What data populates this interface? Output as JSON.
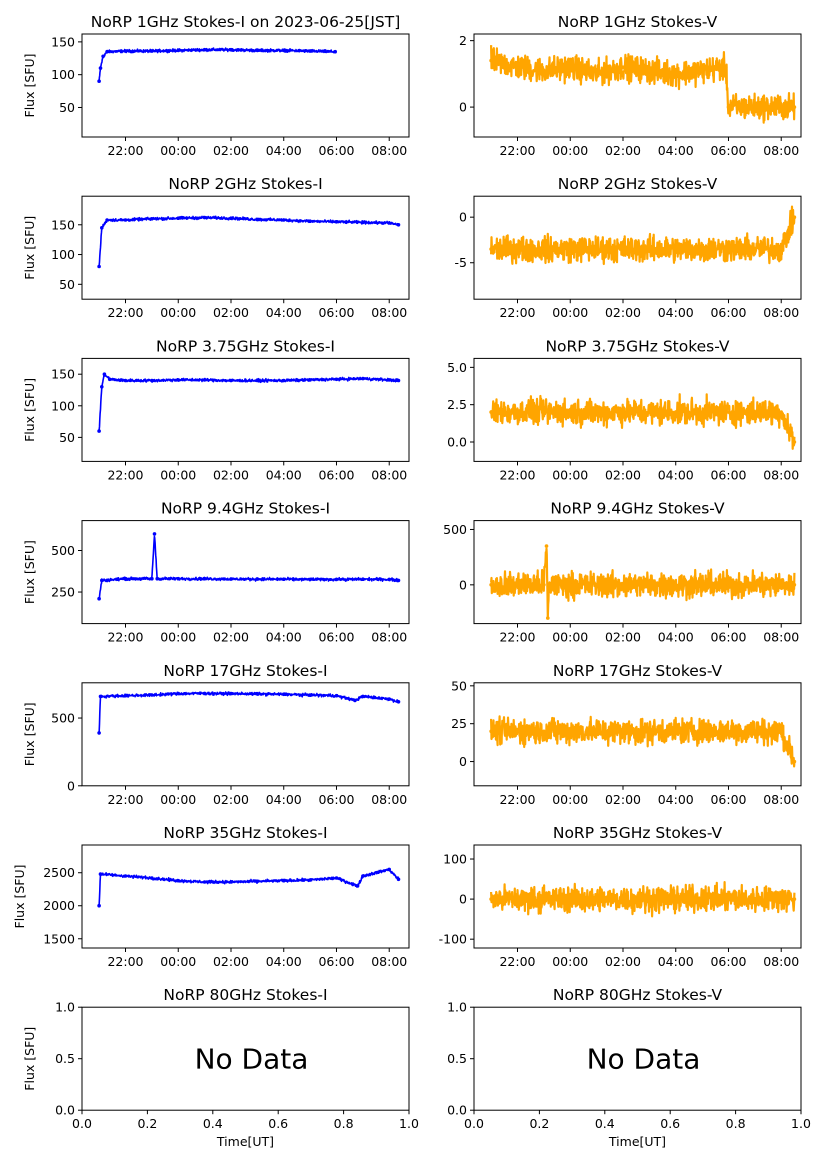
{
  "chart_data": [
    {
      "type": "scatter",
      "title": "NoRP 1GHz Stokes-I on 2023-06-25[JST]",
      "ylabel": "Flux [SFU]",
      "xlabel": "",
      "x_ticks": [
        "22:00",
        "00:00",
        "02:00",
        "04:00",
        "06:00",
        "08:00"
      ],
      "y_ticks": [
        "50",
        "100",
        "150"
      ],
      "ylim": [
        5,
        162
      ],
      "color": "#0000ff",
      "series": [
        {
          "values": [
            [
              21.0,
              90
            ],
            [
              21.05,
              110
            ],
            [
              21.15,
              128
            ],
            [
              21.3,
              135
            ],
            [
              22,
              136
            ],
            [
              23,
              136
            ],
            [
              0,
              137
            ],
            [
              1,
              138
            ],
            [
              2,
              138
            ],
            [
              3,
              137
            ],
            [
              4,
              137
            ],
            [
              5,
              136
            ],
            [
              5.95,
              135
            ]
          ]
        }
      ]
    },
    {
      "type": "scatter",
      "title": "NoRP 1GHz Stokes-V",
      "ylabel": "",
      "xlabel": "",
      "x_ticks": [
        "22:00",
        "00:00",
        "02:00",
        "04:00",
        "06:00",
        "08:00"
      ],
      "y_ticks": [
        "0",
        "2"
      ],
      "ylim": [
        -0.9,
        2.2
      ],
      "color": "#ffa500",
      "series": [
        {
          "values": [
            [
              21.0,
              1.4
            ],
            [
              22,
              1.2
            ],
            [
              23,
              1.1
            ],
            [
              0,
              1.2
            ],
            [
              1,
              1.0
            ],
            [
              2,
              1.2
            ],
            [
              3,
              1.1
            ],
            [
              4,
              1.0
            ],
            [
              5,
              1.1
            ],
            [
              5.9,
              1.2
            ],
            [
              6,
              0
            ],
            [
              7,
              0
            ],
            [
              8,
              0
            ],
            [
              8.5,
              0
            ]
          ]
        }
      ]
    },
    {
      "type": "scatter",
      "title": "NoRP 2GHz Stokes-I",
      "ylabel": "Flux [SFU]",
      "xlabel": "",
      "x_ticks": [
        "22:00",
        "00:00",
        "02:00",
        "04:00",
        "06:00",
        "08:00"
      ],
      "y_ticks": [
        "50",
        "100",
        "150"
      ],
      "ylim": [
        25,
        198
      ],
      "color": "#0000ff",
      "series": [
        {
          "values": [
            [
              21.0,
              80
            ],
            [
              21.1,
              145
            ],
            [
              21.3,
              158
            ],
            [
              22,
              158
            ],
            [
              23,
              160
            ],
            [
              0,
              161
            ],
            [
              1,
              162
            ],
            [
              2,
              161
            ],
            [
              3,
              159
            ],
            [
              4,
              158
            ],
            [
              5,
              156
            ],
            [
              6,
              155
            ],
            [
              7,
              154
            ],
            [
              8,
              153
            ],
            [
              8.35,
              150
            ]
          ]
        }
      ]
    },
    {
      "type": "scatter",
      "title": "NoRP 2GHz Stokes-V",
      "ylabel": "",
      "xlabel": "",
      "x_ticks": [
        "22:00",
        "00:00",
        "02:00",
        "04:00",
        "06:00",
        "08:00"
      ],
      "y_ticks": [
        "-5",
        "0"
      ],
      "ylim": [
        -9,
        2.3
      ],
      "color": "#ffa500",
      "series": [
        {
          "values": [
            [
              21.0,
              -3.5
            ],
            [
              22,
              -3.5
            ],
            [
              23,
              -3.5
            ],
            [
              0,
              -3.5
            ],
            [
              1,
              -3.5
            ],
            [
              2,
              -3.5
            ],
            [
              3,
              -3.5
            ],
            [
              4,
              -3.5
            ],
            [
              5,
              -3.5
            ],
            [
              6,
              -3.5
            ],
            [
              7,
              -3.5
            ],
            [
              8,
              -3.5
            ],
            [
              8.5,
              0
            ]
          ]
        }
      ]
    },
    {
      "type": "scatter",
      "title": "NoRP 3.75GHz Stokes-I",
      "ylabel": "Flux [SFU]",
      "xlabel": "",
      "x_ticks": [
        "22:00",
        "00:00",
        "02:00",
        "04:00",
        "06:00",
        "08:00"
      ],
      "y_ticks": [
        "50",
        "100",
        "150"
      ],
      "ylim": [
        12,
        175
      ],
      "color": "#0000ff",
      "series": [
        {
          "values": [
            [
              21.0,
              60
            ],
            [
              21.1,
              130
            ],
            [
              21.2,
              150
            ],
            [
              21.4,
              142
            ],
            [
              22,
              140
            ],
            [
              23,
              140
            ],
            [
              0,
              141
            ],
            [
              1,
              141
            ],
            [
              2,
              140
            ],
            [
              3,
              140
            ],
            [
              4,
              140
            ],
            [
              5,
              141
            ],
            [
              6,
              142
            ],
            [
              7,
              143
            ],
            [
              8,
              141
            ],
            [
              8.35,
              140
            ]
          ]
        }
      ]
    },
    {
      "type": "scatter",
      "title": "NoRP 3.75GHz Stokes-V",
      "ylabel": "",
      "xlabel": "",
      "x_ticks": [
        "22:00",
        "00:00",
        "02:00",
        "04:00",
        "06:00",
        "08:00"
      ],
      "y_ticks": [
        "0.0",
        "2.5",
        "5.0"
      ],
      "ylim": [
        -1.3,
        5.6
      ],
      "color": "#ffa500",
      "series": [
        {
          "values": [
            [
              21.0,
              2.0
            ],
            [
              22,
              2.0
            ],
            [
              23,
              2.0
            ],
            [
              0,
              2.0
            ],
            [
              1,
              2.0
            ],
            [
              2,
              2.0
            ],
            [
              3,
              2.0
            ],
            [
              4,
              2.0
            ],
            [
              5,
              2.0
            ],
            [
              6,
              2.0
            ],
            [
              7,
              2.0
            ],
            [
              8,
              2.0
            ],
            [
              8.5,
              0
            ]
          ]
        }
      ]
    },
    {
      "type": "scatter",
      "title": "NoRP 9.4GHz Stokes-I",
      "ylabel": "Flux [SFU]",
      "xlabel": "",
      "x_ticks": [
        "22:00",
        "00:00",
        "02:00",
        "04:00",
        "06:00",
        "08:00"
      ],
      "y_ticks": [
        "250",
        "500"
      ],
      "ylim": [
        60,
        680
      ],
      "color": "#0000ff",
      "series": [
        {
          "values": [
            [
              21.0,
              210
            ],
            [
              21.1,
              320
            ],
            [
              22,
              330
            ],
            [
              23,
              330
            ],
            [
              23.1,
              600
            ],
            [
              23.2,
              330
            ],
            [
              0,
              330
            ],
            [
              1,
              330
            ],
            [
              2,
              328
            ],
            [
              3,
              328
            ],
            [
              4,
              327
            ],
            [
              5,
              326
            ],
            [
              6,
              326
            ],
            [
              7,
              327
            ],
            [
              8,
              326
            ],
            [
              8.35,
              320
            ]
          ]
        }
      ]
    },
    {
      "type": "scatter",
      "title": "NoRP 9.4GHz Stokes-V",
      "ylabel": "",
      "xlabel": "",
      "x_ticks": [
        "22:00",
        "00:00",
        "02:00",
        "04:00",
        "06:00",
        "08:00"
      ],
      "y_ticks": [
        "0",
        "500"
      ],
      "ylim": [
        -350,
        580
      ],
      "color": "#ffa500",
      "series": [
        {
          "values": [
            [
              21.0,
              0
            ],
            [
              22,
              0
            ],
            [
              23,
              0
            ],
            [
              23.1,
              350
            ],
            [
              23.15,
              -300
            ],
            [
              23.2,
              0
            ],
            [
              0,
              0
            ],
            [
              2,
              0
            ],
            [
              4,
              0
            ],
            [
              6,
              0
            ],
            [
              8,
              0
            ],
            [
              8.5,
              0
            ]
          ]
        }
      ]
    },
    {
      "type": "scatter",
      "title": "NoRP 17GHz Stokes-I",
      "ylabel": "Flux [SFU]",
      "xlabel": "",
      "x_ticks": [
        "22:00",
        "00:00",
        "02:00",
        "04:00",
        "06:00",
        "08:00"
      ],
      "y_ticks": [
        "0",
        "500"
      ],
      "ylim": [
        0,
        760
      ],
      "color": "#0000ff",
      "series": [
        {
          "values": [
            [
              21.0,
              390
            ],
            [
              21.05,
              660
            ],
            [
              22,
              665
            ],
            [
              23,
              670
            ],
            [
              0,
              680
            ],
            [
              1,
              682
            ],
            [
              2,
              680
            ],
            [
              3,
              678
            ],
            [
              4,
              675
            ],
            [
              5,
              670
            ],
            [
              6,
              665
            ],
            [
              6.7,
              630
            ],
            [
              7,
              660
            ],
            [
              8,
              640
            ],
            [
              8.35,
              620
            ]
          ]
        }
      ]
    },
    {
      "type": "scatter",
      "title": "NoRP 17GHz Stokes-V",
      "ylabel": "",
      "xlabel": "",
      "x_ticks": [
        "22:00",
        "00:00",
        "02:00",
        "04:00",
        "06:00",
        "08:00"
      ],
      "y_ticks": [
        "0",
        "25",
        "50"
      ],
      "ylim": [
        -16,
        52
      ],
      "color": "#ffa500",
      "series": [
        {
          "values": [
            [
              21.0,
              20
            ],
            [
              22,
              20
            ],
            [
              23,
              20
            ],
            [
              0,
              20
            ],
            [
              1,
              20
            ],
            [
              2,
              20
            ],
            [
              3,
              20
            ],
            [
              4,
              20
            ],
            [
              5,
              20
            ],
            [
              6,
              20
            ],
            [
              7,
              20
            ],
            [
              8,
              20
            ],
            [
              8.5,
              0
            ]
          ]
        }
      ]
    },
    {
      "type": "scatter",
      "title": "NoRP 35GHz Stokes-I",
      "ylabel": "Flux [SFU]",
      "xlabel": "",
      "x_ticks": [
        "22:00",
        "00:00",
        "02:00",
        "04:00",
        "06:00",
        "08:00"
      ],
      "y_ticks": [
        "1500",
        "2000",
        "2500"
      ],
      "ylim": [
        1360,
        2920
      ],
      "color": "#0000ff",
      "series": [
        {
          "values": [
            [
              21.0,
              2000
            ],
            [
              21.05,
              2480
            ],
            [
              22,
              2450
            ],
            [
              23,
              2420
            ],
            [
              0,
              2380
            ],
            [
              1,
              2360
            ],
            [
              2,
              2360
            ],
            [
              3,
              2370
            ],
            [
              4,
              2380
            ],
            [
              5,
              2390
            ],
            [
              6,
              2420
            ],
            [
              6.8,
              2300
            ],
            [
              7,
              2450
            ],
            [
              8,
              2550
            ],
            [
              8.35,
              2400
            ]
          ]
        }
      ]
    },
    {
      "type": "scatter",
      "title": "NoRP 35GHz Stokes-V",
      "ylabel": "",
      "xlabel": "",
      "x_ticks": [
        "22:00",
        "00:00",
        "02:00",
        "04:00",
        "06:00",
        "08:00"
      ],
      "y_ticks": [
        "-100",
        "0",
        "100"
      ],
      "ylim": [
        -122,
        135
      ],
      "color": "#ffa500",
      "series": [
        {
          "values": [
            [
              21.0,
              0
            ],
            [
              22,
              0
            ],
            [
              23,
              0
            ],
            [
              0,
              0
            ],
            [
              1,
              0
            ],
            [
              2,
              0
            ],
            [
              3,
              0
            ],
            [
              4,
              0
            ],
            [
              5,
              0
            ],
            [
              6,
              0
            ],
            [
              7,
              0
            ],
            [
              8,
              0
            ],
            [
              8.5,
              0
            ]
          ]
        }
      ]
    },
    {
      "type": "scatter",
      "title": "NoRP 80GHz Stokes-I",
      "ylabel": "Flux [SFU]",
      "xlabel": "Time[UT]",
      "x_ticks": [
        "0.0",
        "0.2",
        "0.4",
        "0.6",
        "0.8",
        "1.0"
      ],
      "y_ticks": [
        "0.0",
        "0.5",
        "1.0"
      ],
      "xlim": [
        0,
        1
      ],
      "ylim": [
        0,
        1
      ],
      "annotation": "No Data",
      "series": []
    },
    {
      "type": "scatter",
      "title": "NoRP 80GHz Stokes-V",
      "ylabel": "",
      "xlabel": "Time[UT]",
      "x_ticks": [
        "0.0",
        "0.2",
        "0.4",
        "0.6",
        "0.8",
        "1.0"
      ],
      "y_ticks": [
        "0.0",
        "0.5",
        "1.0"
      ],
      "xlim": [
        0,
        1
      ],
      "ylim": [
        0,
        1
      ],
      "annotation": "No Data",
      "series": []
    }
  ]
}
